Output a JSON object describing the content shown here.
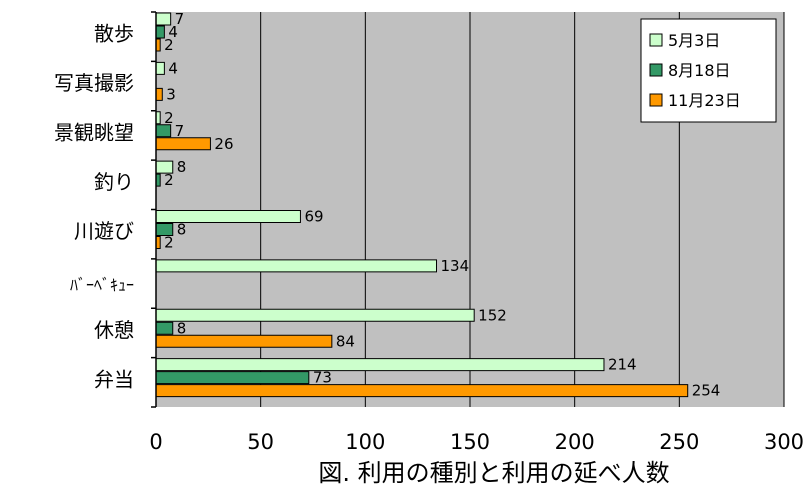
{
  "chart_data": {
    "type": "bar",
    "orientation": "horizontal",
    "caption": "図. 利用の種別と利用の延べ人数",
    "categories": [
      "散歩",
      "写真撮影",
      "景観眺望",
      "釣り",
      "川遊び",
      "ﾊﾞｰﾍﾞｷｭｰ",
      "休憩",
      "弁当"
    ],
    "series": [
      {
        "name": "5月3日",
        "color": "#ccffcc",
        "values": [
          7,
          4,
          2,
          8,
          69,
          134,
          152,
          214
        ],
        "labels": [
          "7",
          "4",
          "2",
          "8",
          "69",
          "134",
          "152",
          "214"
        ]
      },
      {
        "name": "8月18日",
        "color": "#339966",
        "values": [
          4,
          null,
          7,
          2,
          8,
          null,
          8,
          73
        ],
        "labels": [
          "4",
          "",
          "7",
          "2",
          "8",
          "",
          "8",
          "73"
        ]
      },
      {
        "name": "11月23日",
        "color": "#ff9900",
        "values": [
          2,
          3,
          26,
          null,
          2,
          null,
          84,
          254
        ],
        "labels": [
          "2",
          "3",
          "26",
          "",
          "2",
          "",
          "84",
          "254"
        ]
      }
    ],
    "xlim": [
      0,
      300
    ],
    "xticks": [
      0,
      50,
      100,
      150,
      200,
      250,
      300
    ],
    "xtick_labels": [
      "0",
      "50",
      "100",
      "150",
      "200",
      "250",
      "300"
    ],
    "grid": true,
    "plot_background": "#c0c0c0",
    "legend_position": "top-right"
  }
}
